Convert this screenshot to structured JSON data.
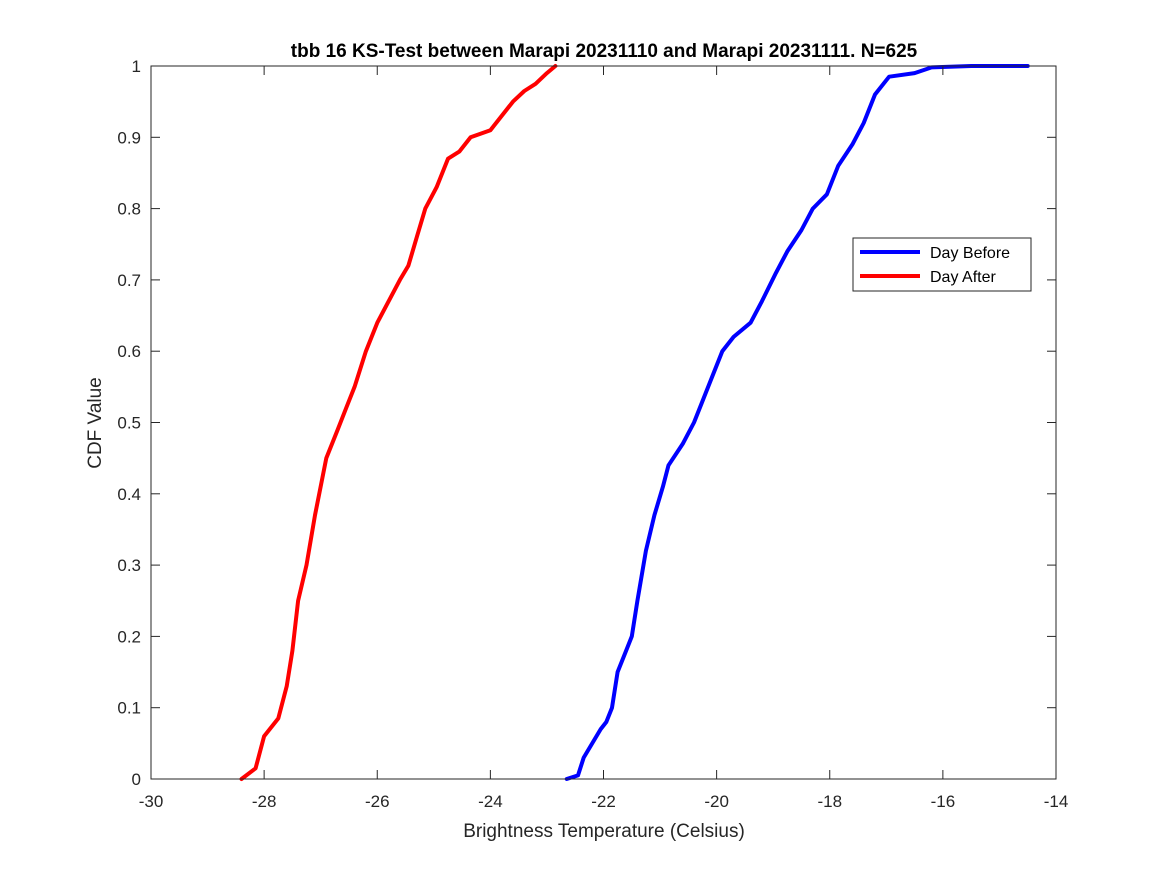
{
  "chart_data": {
    "type": "line",
    "title": "tbb 16 KS-Test between Marapi 20231110 and Marapi 20231111. N=625",
    "xlabel": "Brightness Temperature (Celsius)",
    "ylabel": "CDF Value",
    "xlim": [
      -30,
      -14
    ],
    "ylim": [
      0,
      1
    ],
    "xticks": [
      -30,
      -28,
      -26,
      -24,
      -22,
      -20,
      -18,
      -16,
      -14
    ],
    "yticks": [
      0,
      0.1,
      0.2,
      0.3,
      0.4,
      0.5,
      0.6,
      0.7,
      0.8,
      0.9,
      1
    ],
    "grid": false,
    "legend_position": "right",
    "series": [
      {
        "name": "Day Before",
        "color": "#0000ff",
        "points": [
          [
            -22.65,
            0.0
          ],
          [
            -22.45,
            0.005
          ],
          [
            -22.35,
            0.03
          ],
          [
            -22.2,
            0.05
          ],
          [
            -22.05,
            0.07
          ],
          [
            -21.95,
            0.08
          ],
          [
            -21.85,
            0.1
          ],
          [
            -21.75,
            0.15
          ],
          [
            -21.6,
            0.18
          ],
          [
            -21.5,
            0.2
          ],
          [
            -21.4,
            0.25
          ],
          [
            -21.25,
            0.32
          ],
          [
            -21.1,
            0.37
          ],
          [
            -20.95,
            0.41
          ],
          [
            -20.85,
            0.44
          ],
          [
            -20.6,
            0.47
          ],
          [
            -20.4,
            0.5
          ],
          [
            -20.25,
            0.53
          ],
          [
            -20.05,
            0.57
          ],
          [
            -19.9,
            0.6
          ],
          [
            -19.7,
            0.62
          ],
          [
            -19.4,
            0.64
          ],
          [
            -19.2,
            0.67
          ],
          [
            -18.95,
            0.71
          ],
          [
            -18.75,
            0.74
          ],
          [
            -18.5,
            0.77
          ],
          [
            -18.3,
            0.8
          ],
          [
            -18.05,
            0.82
          ],
          [
            -17.85,
            0.86
          ],
          [
            -17.6,
            0.89
          ],
          [
            -17.4,
            0.92
          ],
          [
            -17.2,
            0.96
          ],
          [
            -16.95,
            0.985
          ],
          [
            -16.5,
            0.99
          ],
          [
            -16.2,
            0.998
          ],
          [
            -15.5,
            1.0
          ],
          [
            -14.5,
            1.0
          ]
        ]
      },
      {
        "name": "Day After",
        "color": "#ff0000",
        "points": [
          [
            -28.4,
            0.0
          ],
          [
            -28.15,
            0.015
          ],
          [
            -28.0,
            0.06
          ],
          [
            -27.75,
            0.085
          ],
          [
            -27.6,
            0.13
          ],
          [
            -27.5,
            0.18
          ],
          [
            -27.4,
            0.25
          ],
          [
            -27.25,
            0.3
          ],
          [
            -27.1,
            0.37
          ],
          [
            -26.9,
            0.45
          ],
          [
            -26.7,
            0.49
          ],
          [
            -26.55,
            0.52
          ],
          [
            -26.4,
            0.55
          ],
          [
            -26.2,
            0.6
          ],
          [
            -26.0,
            0.64
          ],
          [
            -25.8,
            0.67
          ],
          [
            -25.6,
            0.7
          ],
          [
            -25.45,
            0.72
          ],
          [
            -25.3,
            0.76
          ],
          [
            -25.15,
            0.8
          ],
          [
            -24.95,
            0.83
          ],
          [
            -24.75,
            0.87
          ],
          [
            -24.55,
            0.88
          ],
          [
            -24.35,
            0.9
          ],
          [
            -24.0,
            0.91
          ],
          [
            -23.8,
            0.93
          ],
          [
            -23.6,
            0.95
          ],
          [
            -23.4,
            0.965
          ],
          [
            -23.2,
            0.975
          ],
          [
            -23.0,
            0.99
          ],
          [
            -22.85,
            1.0
          ]
        ]
      }
    ]
  }
}
